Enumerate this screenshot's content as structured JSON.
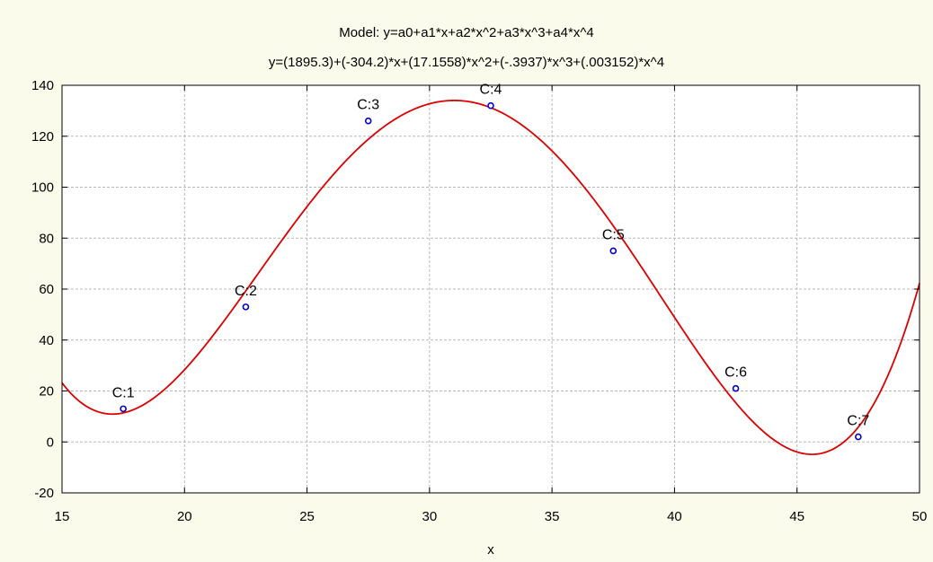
{
  "chart_data": {
    "type": "scatter",
    "title": "Model: y=a0+a1*x+a2*x^2+a3*x^3+a4*x^4",
    "subtitle": "y=(1895.3)+(-304.2)*x+(17.1558)*x^2+(-.3937)*x^3+(.003152)*x^4",
    "xlabel": "x",
    "ylabel": "",
    "xlim": [
      15,
      50
    ],
    "ylim": [
      -20,
      140
    ],
    "xticks": [
      "15",
      "20",
      "25",
      "30",
      "35",
      "40",
      "45",
      "50"
    ],
    "yticks": [
      "-20",
      "0",
      "20",
      "40",
      "60",
      "80",
      "100",
      "120",
      "140"
    ],
    "grid": true,
    "points": [
      {
        "label": "C:1",
        "x": 17.5,
        "y": 13
      },
      {
        "label": "C:2",
        "x": 22.5,
        "y": 53
      },
      {
        "label": "C:3",
        "x": 27.5,
        "y": 126
      },
      {
        "label": "C:4",
        "x": 32.5,
        "y": 132
      },
      {
        "label": "C:5",
        "x": 37.5,
        "y": 75
      },
      {
        "label": "C:6",
        "x": 42.5,
        "y": 21
      },
      {
        "label": "C:7",
        "x": 47.5,
        "y": 2
      }
    ],
    "fit": {
      "type": "polynomial",
      "coefficients": [
        1895.3,
        -304.2,
        17.1558,
        -0.3937,
        0.003152
      ]
    },
    "colors": {
      "points": "#0000cc",
      "fit_line": "#dd0000",
      "background": "#fbfbec",
      "plot_area": "#ffffff"
    }
  }
}
